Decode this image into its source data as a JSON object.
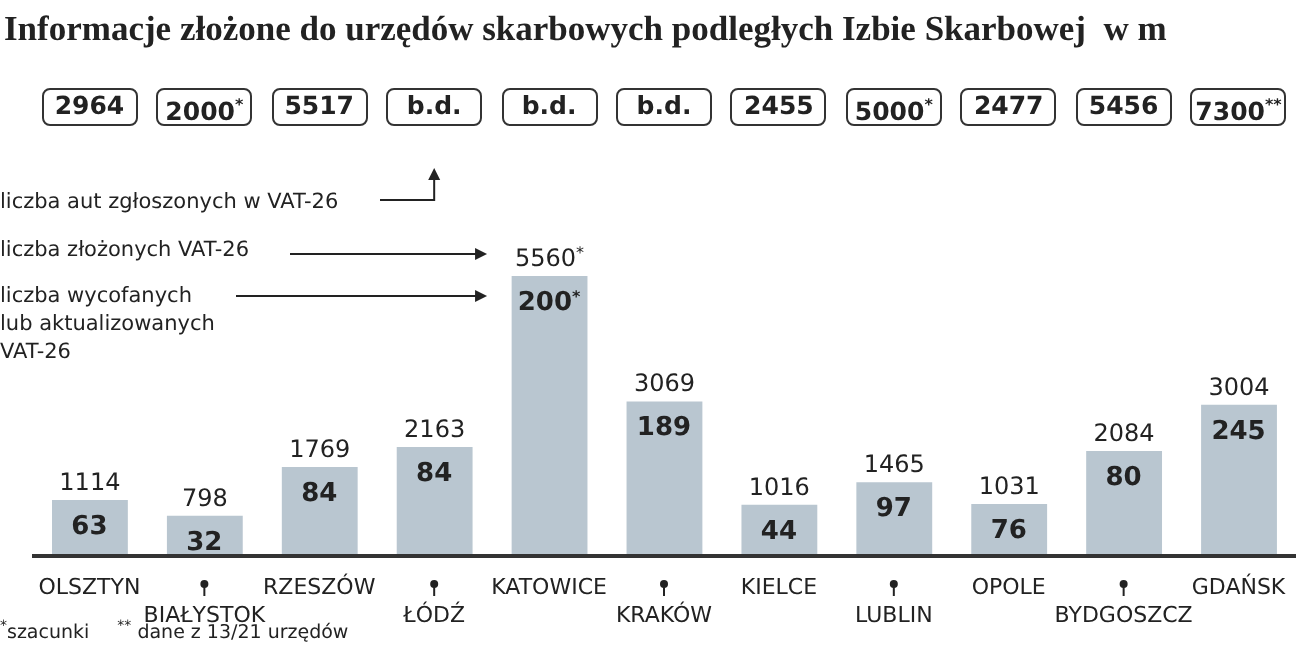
{
  "chart_data": {
    "type": "bar",
    "title": "Informacje złożone do urzędów skarbowych podległych Izbie Skarbowej  w m",
    "categories": [
      "OLSZTYN",
      "BIAŁYSTOK",
      "RZESZÓW",
      "ŁÓDŹ",
      "KATOWICE",
      "KRAKÓW",
      "KIELCE",
      "LUBLIN",
      "OPOLE",
      "BYDGOSZCZ",
      "GDAŃSK"
    ],
    "series": [
      {
        "name": "liczba złożonych VAT-26",
        "color": "#b9c6d0",
        "values": [
          1114,
          798,
          1769,
          2163,
          5560,
          3069,
          1016,
          1465,
          1031,
          2084,
          3004
        ],
        "value_labels": [
          "1114",
          "798",
          "1769",
          "2163",
          "5560$^{*}$",
          "3069",
          "1016",
          "1465",
          "1031",
          "2084",
          "3004"
        ]
      }
    ],
    "annotations": [
      "liczba aut zgłoszonych w VAT-26",
      "liczba wycofanych lub aktualizowanych VAT-26",
      {
        "text": "63",
        "x": "OLSZTYN",
        "y": 1114
      },
      {
        "text": "32",
        "x": "BIAŁYSTOK",
        "y": 798
      },
      {
        "text": "84",
        "x": "RZESZÓW",
        "y": 1769
      },
      {
        "text": "84",
        "x": "ŁÓDŹ",
        "y": 2163
      },
      {
        "text": "200$^{*}$",
        "x": "KATOWICE",
        "y": 5560
      },
      {
        "text": "189",
        "x": "KRAKÓW",
        "y": 3069
      },
      {
        "text": "44",
        "x": "KIELCE",
        "y": 1016
      },
      {
        "text": "97",
        "x": "LUBLIN",
        "y": 1465
      },
      {
        "text": "76",
        "x": "OPOLE",
        "y": 1031
      },
      {
        "text": "80",
        "x": "BYDGOSZCZ",
        "y": 2084
      },
      {
        "text": "245",
        "x": "GDAŃSK",
        "y": 3004
      },
      "2964",
      "2000$^{*}$",
      "5517",
      "b.d.",
      "b.d.",
      "b.d.",
      "2455",
      "5000$^{*}$",
      "2477",
      "5456",
      "7300$^{**}$",
      "$^{*}$szacunki",
      "$^{**}$ dane z 13/21 urzędów"
    ]
  }
}
